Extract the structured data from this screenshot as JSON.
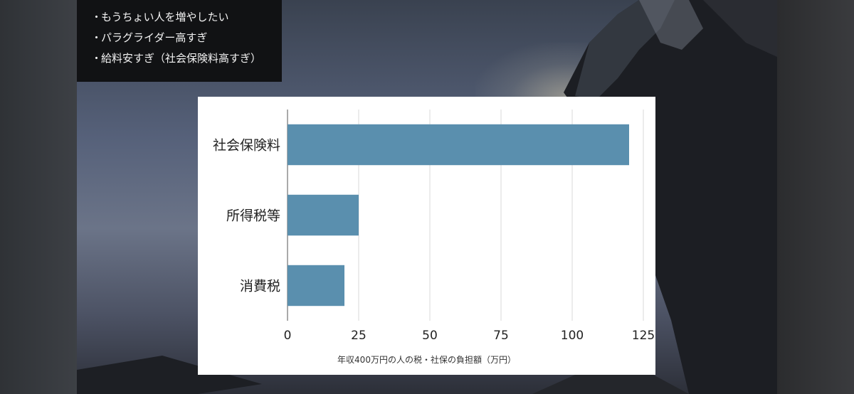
{
  "slide": {
    "bullets": [
      "もうちょい人を増やしたい",
      "パラグライダー高すぎ",
      "給料安すぎ（社会保険料高すぎ）"
    ],
    "bullet_marker": "・"
  },
  "chart_data": {
    "type": "bar",
    "orientation": "horizontal",
    "categories": [
      "社会保険料",
      "所得税等",
      "消費税"
    ],
    "values": [
      120,
      25,
      20
    ],
    "xlabel": "年収400万円の人の税・社保の負担額（万円）",
    "xlim": [
      0,
      125
    ],
    "ticks": [
      "0",
      "25",
      "50",
      "75",
      "100",
      "125"
    ],
    "bar_color": "#5a8fae",
    "grid": true
  }
}
